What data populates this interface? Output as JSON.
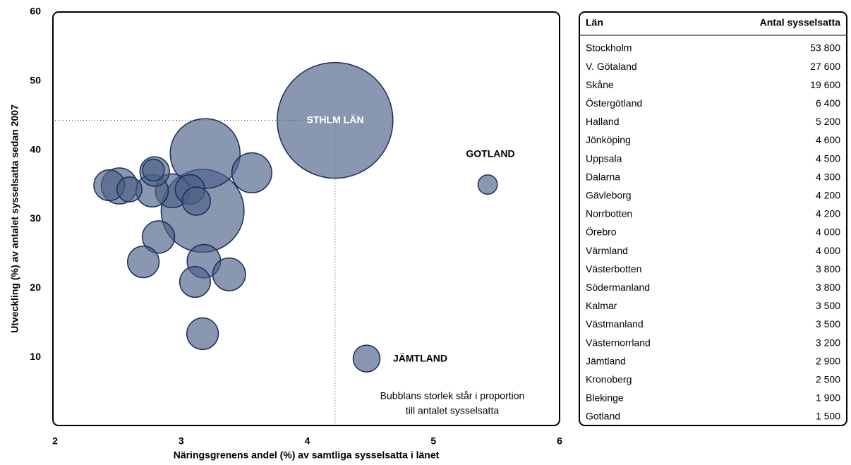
{
  "chart_data": {
    "type": "bubble",
    "xlabel": "Näringsgrenens andel (%) av samtliga sysselsatta i länet",
    "ylabel": "Utveckling (%) av antalet sysselsatta sedan 2007",
    "x": [
      4.22,
      3.17,
      3.19,
      3.56,
      2.51,
      2.93,
      3.18,
      3.38,
      2.77,
      2.82,
      3.17,
      2.7,
      3.11,
      2.43,
      3.07,
      2.79,
      3.12,
      4.47,
      2.59,
      2.78,
      5.43
    ],
    "values": [
      44.3,
      31.2,
      39.5,
      36.7,
      34.8,
      34.1,
      23.9,
      22.0,
      34.1,
      27.4,
      13.4,
      23.8,
      20.9,
      34.9,
      34.3,
      36.9,
      32.6,
      9.8,
      34.3,
      37.1,
      35.0
    ],
    "sizes": [
      53800,
      27600,
      19600,
      6400,
      5200,
      4600,
      4500,
      4300,
      4200,
      4200,
      4000,
      4000,
      3800,
      3800,
      3500,
      3500,
      3200,
      2900,
      2500,
      1900,
      1500
    ],
    "color": "#4a5f85",
    "xlim": [
      2,
      6
    ],
    "xticks": [
      2,
      3,
      4,
      5,
      6
    ],
    "ylim": [
      0,
      60
    ],
    "yticks": [
      10,
      20,
      30,
      40,
      50,
      60
    ],
    "annotations": [
      "STHLM LÄN",
      "JÄMTLAND",
      "GOTLAND"
    ],
    "note": [
      "Bubblans storlek står i proportion",
      "till antalet sysselsatta"
    ]
  },
  "table": {
    "header": [
      "Län",
      "Antal sysselsatta"
    ],
    "rows": [
      [
        "Stockholm",
        "53 800"
      ],
      [
        "V. Götaland",
        "27 600"
      ],
      [
        "Skåne",
        "19 600"
      ],
      [
        "Östergötland",
        "6 400"
      ],
      [
        "Halland",
        "5 200"
      ],
      [
        "Jönköping",
        "4 600"
      ],
      [
        "Uppsala",
        "4 500"
      ],
      [
        "Dalarna",
        "4 300"
      ],
      [
        "Gävleborg",
        "4 200"
      ],
      [
        "Norrbotten",
        "4 200"
      ],
      [
        "Örebro",
        "4 000"
      ],
      [
        "Värmland",
        "4 000"
      ],
      [
        "Västerbotten",
        "3 800"
      ],
      [
        "Södermanland",
        "3 800"
      ],
      [
        "Kalmar",
        "3 500"
      ],
      [
        "Västmanland",
        "3 500"
      ],
      [
        "Västernorrland",
        "3 200"
      ],
      [
        "Jämtland",
        "2 900"
      ],
      [
        "Kronoberg",
        "2 500"
      ],
      [
        "Blekinge",
        "1 900"
      ],
      [
        "Gotland",
        "1 500"
      ]
    ]
  }
}
